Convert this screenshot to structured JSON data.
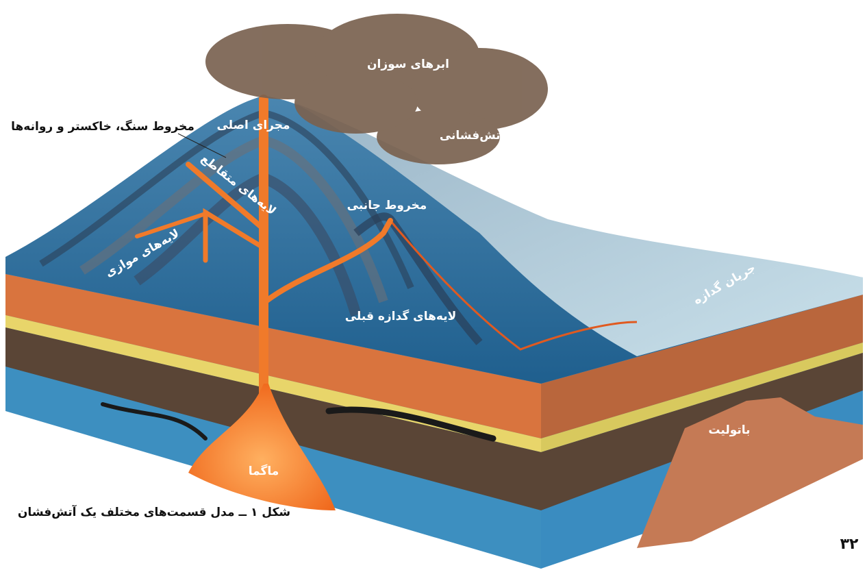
{
  "labels": [
    "ابرهای سوزان",
    "مخروط سنگ، خاکستر و روانه‌ها",
    "مجرای اصلی",
    "بمب آتش‌فشانی",
    "لایه‌های متقاطع",
    "مخروط جانبی",
    "لایه‌های موازی",
    "جریان گدازه",
    "لایه‌های گدازه قبلی",
    "باتولیت",
    "ماگما"
  ],
  "caption": "شکل ۱ ــ مدل قسمت‌های مختلف یک آتش‌فشان",
  "page_number": "۳۲"
}
